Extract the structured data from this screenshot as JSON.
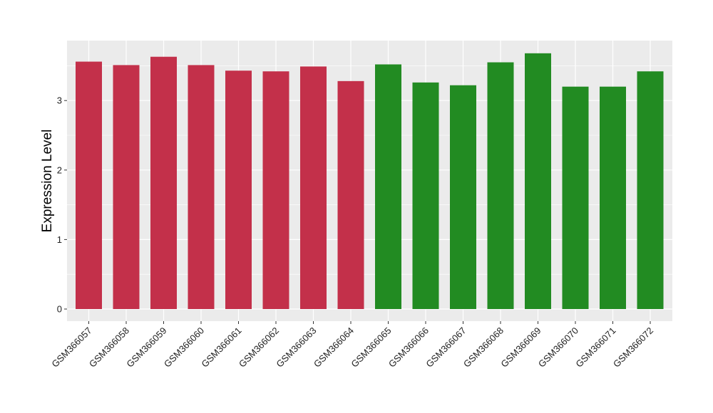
{
  "chart_data": {
    "type": "bar",
    "ylabel": "Expression Level",
    "xlabel": "",
    "ylim": [
      0,
      3.87
    ],
    "yticks": [
      0,
      1,
      2,
      3
    ],
    "grid": true,
    "categories": [
      "GSM366057",
      "GSM366058",
      "GSM366059",
      "GSM366060",
      "GSM366061",
      "GSM366062",
      "GSM366063",
      "GSM366064",
      "GSM366065",
      "GSM366066",
      "GSM366067",
      "GSM366068",
      "GSM366069",
      "GSM366070",
      "GSM366071",
      "GSM366072"
    ],
    "values": [
      3.56,
      3.51,
      3.63,
      3.51,
      3.43,
      3.42,
      3.49,
      3.28,
      3.52,
      3.26,
      3.22,
      3.55,
      3.68,
      3.2,
      3.2,
      3.42
    ],
    "bar_colors": [
      "#c3304a",
      "#c3304a",
      "#c3304a",
      "#c3304a",
      "#c3304a",
      "#c3304a",
      "#c3304a",
      "#c3304a",
      "#228b22",
      "#228b22",
      "#228b22",
      "#228b22",
      "#228b22",
      "#228b22",
      "#228b22",
      "#228b22"
    ],
    "panel_color": "#ebebeb",
    "grid_color": "#ffffff"
  }
}
